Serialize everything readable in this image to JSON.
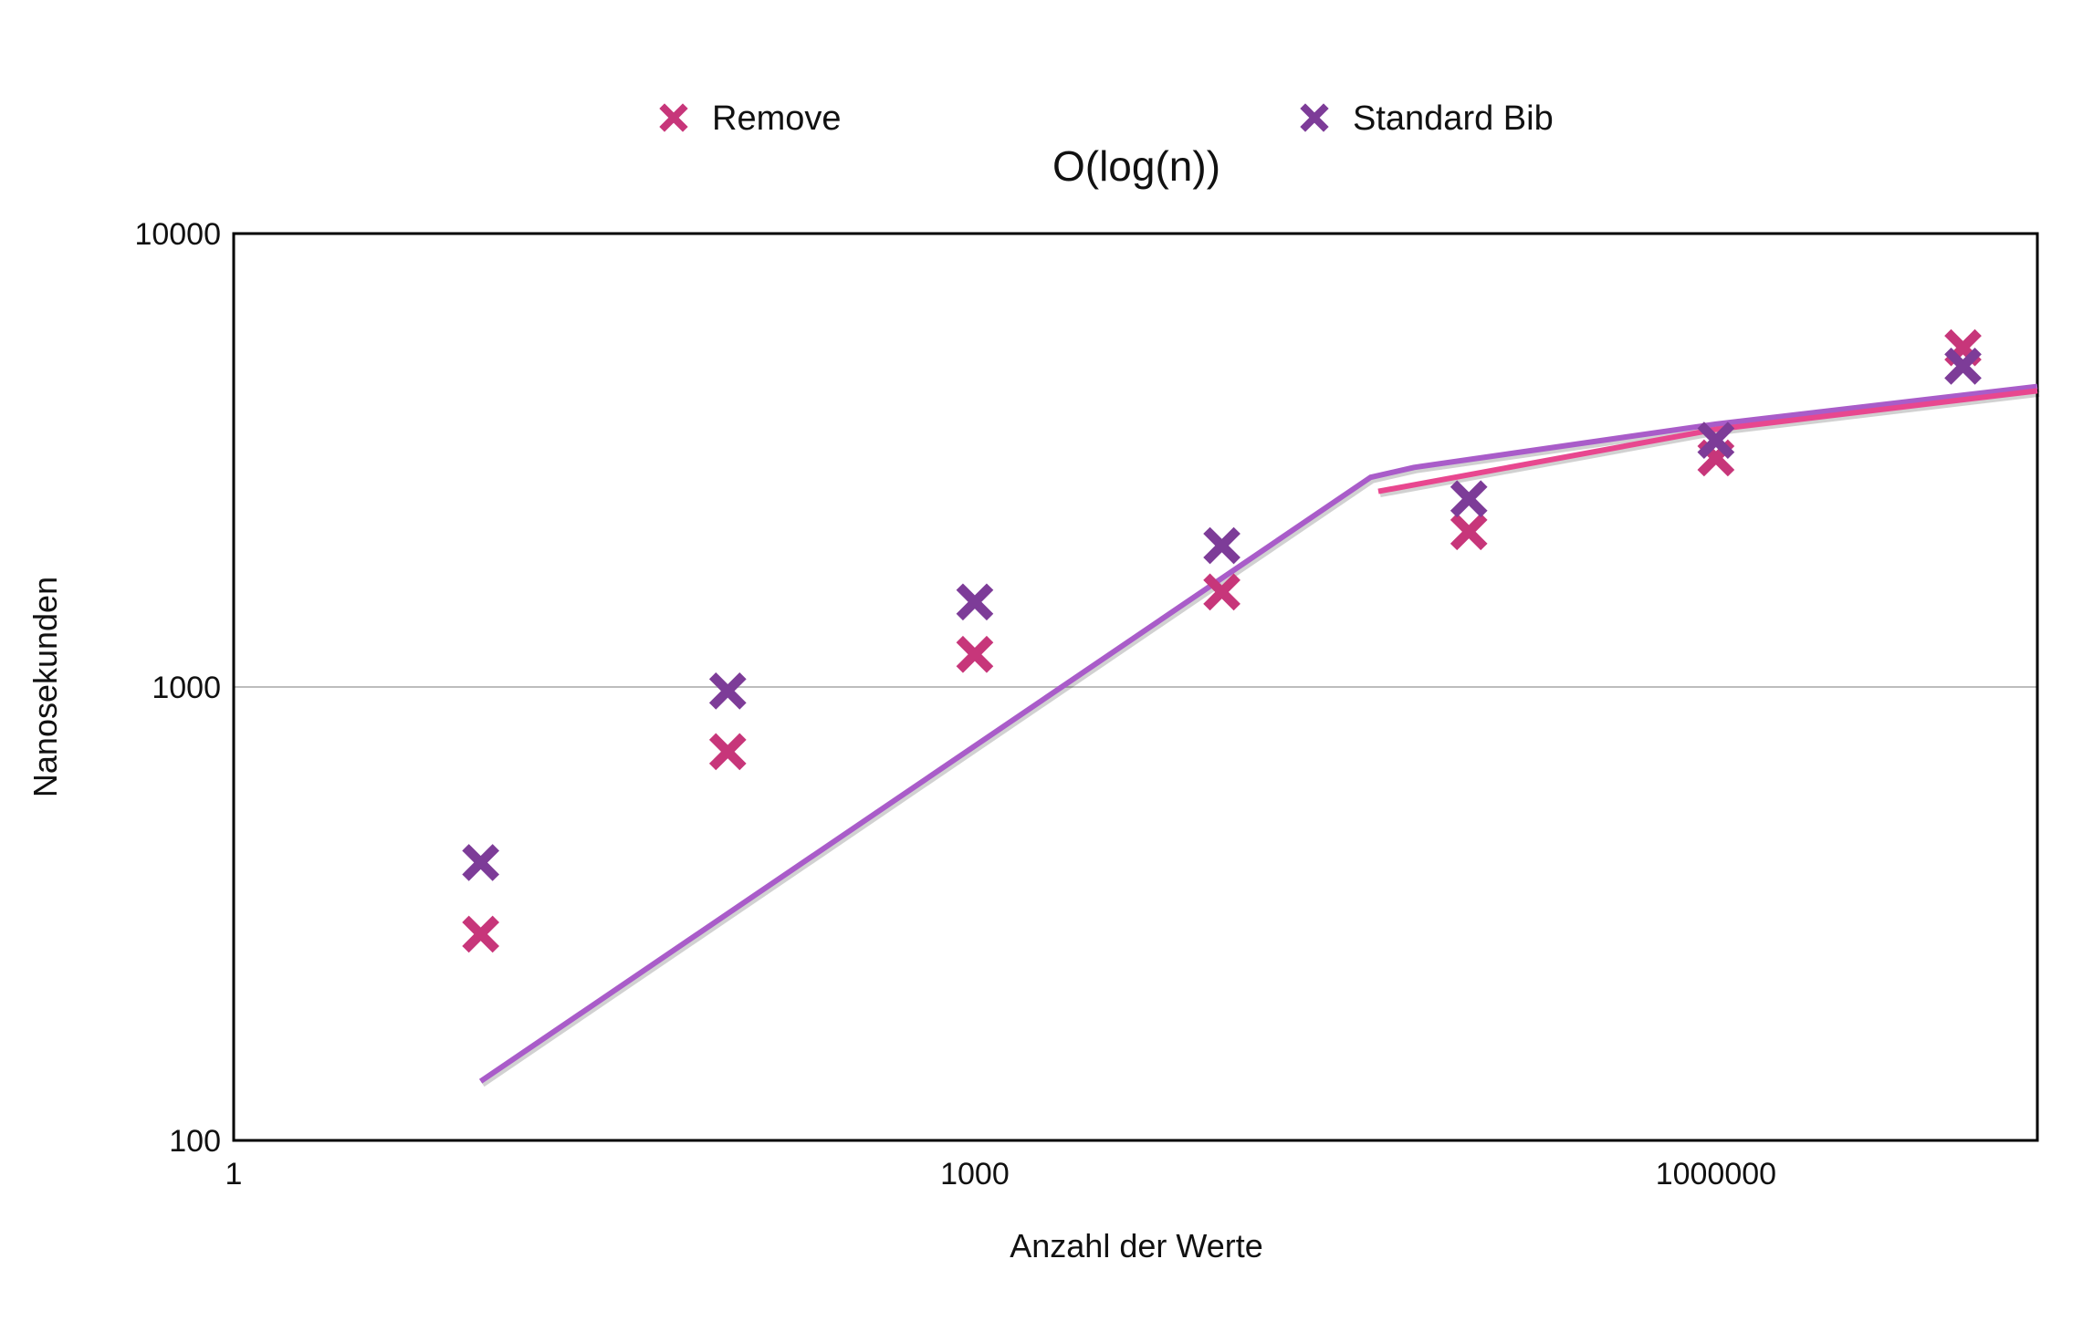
{
  "chart_data": {
    "type": "scatter",
    "title": "O(log(n))",
    "xlabel": "Anzahl der Werte",
    "ylabel": "Nanosekunden",
    "xscale": "log",
    "yscale": "log",
    "xlim": [
      1,
      20000000
    ],
    "ylim": [
      100,
      10000
    ],
    "xticks": [
      "1",
      "1000",
      "1000000"
    ],
    "yticks": [
      "100",
      "1000",
      "10000"
    ],
    "grid": "horizontal major lines",
    "legend": "top",
    "series": [
      {
        "name": "Remove",
        "color": "#c7367a",
        "marker": "x-cross",
        "x": [
          10,
          100,
          1000,
          10000,
          100000,
          1000000,
          10000000
        ],
        "y": [
          285,
          720,
          1180,
          1620,
          2200,
          3200,
          5600
        ],
        "trendline": {
          "color": "#e8478f",
          "points": [
            [
              43000,
              2700
            ],
            [
              1000000,
              3700
            ],
            [
              20000000,
              4500
            ]
          ]
        }
      },
      {
        "name": "Standard Bib",
        "color": "#7d3c98",
        "marker": "x-cross",
        "x": [
          10,
          100,
          1000,
          10000,
          100000,
          1000000,
          10000000
        ],
        "y": [
          410,
          980,
          1540,
          2050,
          2600,
          3500,
          5100
        ],
        "trendline": {
          "color": "#a95cc9",
          "points": [
            [
              10,
              135
            ],
            [
              40000,
              2900
            ],
            [
              60000,
              3050
            ],
            [
              1000000,
              3800
            ],
            [
              20000000,
              4600
            ]
          ]
        }
      }
    ]
  }
}
